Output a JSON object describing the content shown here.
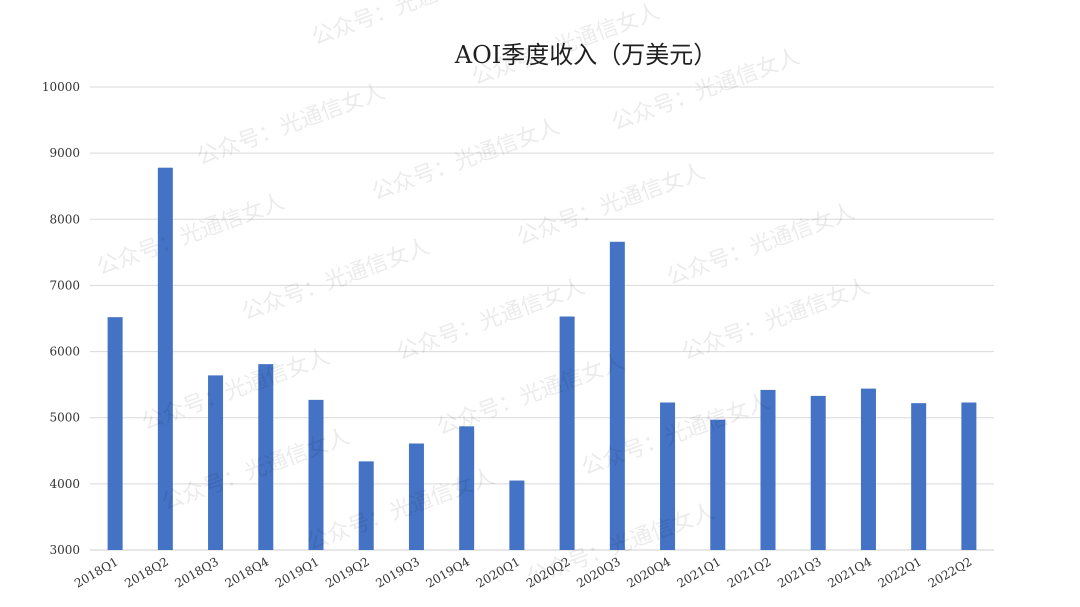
{
  "chart_data": {
    "type": "bar",
    "title": "AOI季度收入（万美元）",
    "xlabel": "",
    "ylabel": "",
    "ylim": [
      3000,
      10000
    ],
    "yticks": [
      3000,
      4000,
      5000,
      6000,
      7000,
      8000,
      9000,
      10000
    ],
    "grid": true,
    "legend": "none",
    "categories": [
      "2018Q1",
      "2018Q2",
      "2018Q3",
      "2018Q4",
      "2019Q1",
      "2019Q2",
      "2019Q3",
      "2019Q4",
      "2020Q1",
      "2020Q2",
      "2020Q3",
      "2020Q4",
      "2021Q1",
      "2021Q2",
      "2021Q3",
      "2021Q4",
      "2022Q1",
      "2022Q2"
    ],
    "values": [
      6520,
      8780,
      5640,
      5810,
      5270,
      4340,
      4610,
      4870,
      4050,
      6530,
      7660,
      5230,
      4970,
      5420,
      5330,
      5440,
      5220,
      5230
    ],
    "bar_color": "#4472c4"
  },
  "watermark": {
    "text": "公众号：光通信女人"
  }
}
